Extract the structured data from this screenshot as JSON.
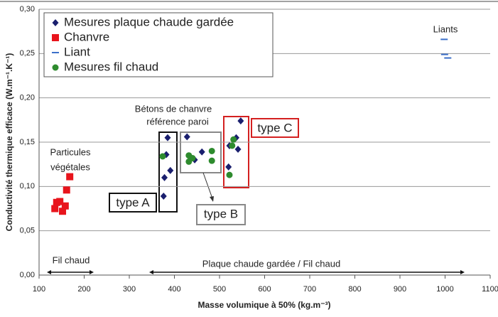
{
  "chart_data": {
    "type": "scatter",
    "xlabel": "Masse volumique à 50% (kg.m⁻³)",
    "ylabel": "Conductivité thermique efficace (W.m⁻¹.K⁻¹)",
    "xlim": [
      100,
      1100
    ],
    "xticks": [
      100,
      200,
      300,
      400,
      500,
      600,
      700,
      800,
      900,
      1000,
      1100
    ],
    "ylim": [
      0,
      0.3
    ],
    "yticks": [
      {
        "value": 0,
        "label": "0,00"
      },
      {
        "value": 0.05,
        "label": "0,05"
      },
      {
        "value": 0.1,
        "label": "0,10"
      },
      {
        "value": 0.15,
        "label": "0,15"
      },
      {
        "value": 0.2,
        "label": "0,20"
      },
      {
        "value": 0.25,
        "label": "0,25"
      },
      {
        "value": 0.3,
        "label": "0,30"
      }
    ],
    "grid": true,
    "legend": "upper left",
    "series": [
      {
        "name": "Mesures plaque chaude gardée",
        "color": "#1a1f6e",
        "marker": "diamond",
        "x": [
          385,
          382,
          391,
          378,
          376,
          428,
          445,
          461,
          547,
          537,
          520,
          522,
          541
        ],
        "values": [
          0.155,
          0.136,
          0.118,
          0.11,
          0.089,
          0.156,
          0.13,
          0.139,
          0.174,
          0.155,
          0.122,
          0.146,
          0.142
        ]
      },
      {
        "name": "Chanvre",
        "color": "#e8141c",
        "marker": "square",
        "x": [
          168,
          161,
          146,
          135,
          152,
          158,
          139
        ],
        "values": [
          0.111,
          0.096,
          0.083,
          0.075,
          0.072,
          0.078,
          0.082
        ]
      },
      {
        "name": "Liant",
        "color": "#3b6fc9",
        "marker": "dash",
        "x": [
          998,
          999,
          1006
        ],
        "values": [
          0.266,
          0.249,
          0.245
        ]
      },
      {
        "name": "Mesures fil chaud",
        "color": "#2e8b2e",
        "marker": "circle",
        "x": [
          374,
          432,
          432,
          483,
          483,
          531,
          528,
          522,
          440
        ],
        "values": [
          0.134,
          0.135,
          0.128,
          0.14,
          0.129,
          0.153,
          0.146,
          0.113,
          0.132
        ]
      }
    ],
    "annotations": [
      "Liants",
      "Particules",
      "végétales",
      "Bétons de chanvre",
      "référence paroi",
      "type A",
      "type B",
      "type C",
      "Fil chaud",
      "Plaque chaude gardée / Fil chaud"
    ]
  }
}
